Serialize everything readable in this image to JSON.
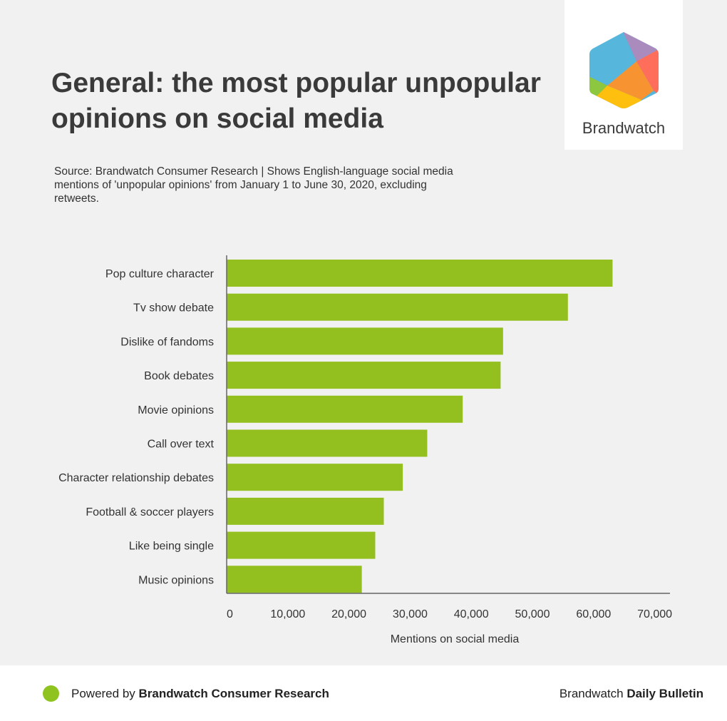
{
  "header": {
    "title": "General: the most popular unpopular opinions on social media",
    "subtitle": "Source: Brandwatch Consumer Research |  Shows English-language social media mentions of 'unpopular opinions' from January 1 to June 30, 2020, excluding retweets.",
    "logo_text": "Brandwatch"
  },
  "footer": {
    "powered_prefix": "Powered by ",
    "powered_brand": "Brandwatch Consumer Research",
    "bulletin_prefix": "Brandwatch ",
    "bulletin_bold": "Daily Bulletin"
  },
  "colors": {
    "bar": "#93c01f",
    "axis": "#666666"
  },
  "chart_data": {
    "type": "bar",
    "orientation": "horizontal",
    "categories": [
      "Pop culture character",
      "Tv show debate",
      "Dislike of fandoms",
      "Book debates",
      "Movie opinions",
      "Call over text",
      "Character relationship debates",
      "Football & soccer players",
      "Like being single",
      "Music opinions"
    ],
    "values": [
      63100,
      55800,
      45200,
      44800,
      38600,
      32800,
      28800,
      25700,
      24300,
      22100
    ],
    "xlabel": "Mentions on social media",
    "ylabel": "",
    "xlim": [
      0,
      70000
    ],
    "xticks": [
      0,
      10000,
      20000,
      30000,
      40000,
      50000,
      60000,
      70000
    ],
    "xtick_labels": [
      "0",
      "10,000",
      "20,000",
      "30,000",
      "40,000",
      "50,000",
      "60,000",
      "70,000"
    ],
    "grid": false,
    "legend": "none"
  }
}
